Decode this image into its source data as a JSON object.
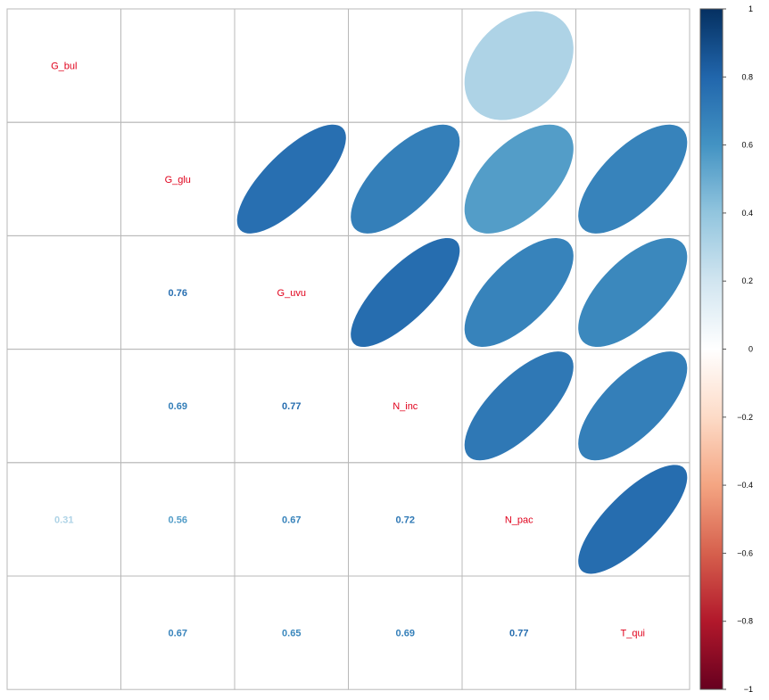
{
  "chart_data": {
    "type": "heatmap",
    "variables": [
      "G_bul",
      "G_glu",
      "G_uvu",
      "N_inc",
      "N_pac",
      "T_qui"
    ],
    "upper_method": "ellipse",
    "lower_method": "number",
    "shown_pairs": [
      {
        "row": "G_bul",
        "col": "N_pac",
        "value": 0.31
      },
      {
        "row": "G_glu",
        "col": "G_uvu",
        "value": 0.76
      },
      {
        "row": "G_glu",
        "col": "N_inc",
        "value": 0.69
      },
      {
        "row": "G_glu",
        "col": "N_pac",
        "value": 0.56
      },
      {
        "row": "G_glu",
        "col": "T_qui",
        "value": 0.67
      },
      {
        "row": "G_uvu",
        "col": "N_inc",
        "value": 0.77
      },
      {
        "row": "G_uvu",
        "col": "N_pac",
        "value": 0.67
      },
      {
        "row": "G_uvu",
        "col": "T_qui",
        "value": 0.65
      },
      {
        "row": "N_inc",
        "col": "N_pac",
        "value": 0.72
      },
      {
        "row": "N_inc",
        "col": "T_qui",
        "value": 0.69
      },
      {
        "row": "N_pac",
        "col": "T_qui",
        "value": 0.77
      }
    ],
    "colorbar": {
      "range": [
        -1,
        1
      ],
      "ticks": [
        "1",
        "0.8",
        "0.6",
        "0.4",
        "0.2",
        "0",
        "−0.2",
        "−0.4",
        "−0.6",
        "−0.8",
        "−1"
      ],
      "colors": [
        "#67001f",
        "#b2182b",
        "#d6604d",
        "#f4a582",
        "#fddbc7",
        "#ffffff",
        "#d1e5f0",
        "#92c5de",
        "#4393c3",
        "#2166ac",
        "#053061"
      ]
    },
    "colors": {
      "diagonal_label": "#e0001b",
      "grid": "#b8b8b8"
    }
  }
}
